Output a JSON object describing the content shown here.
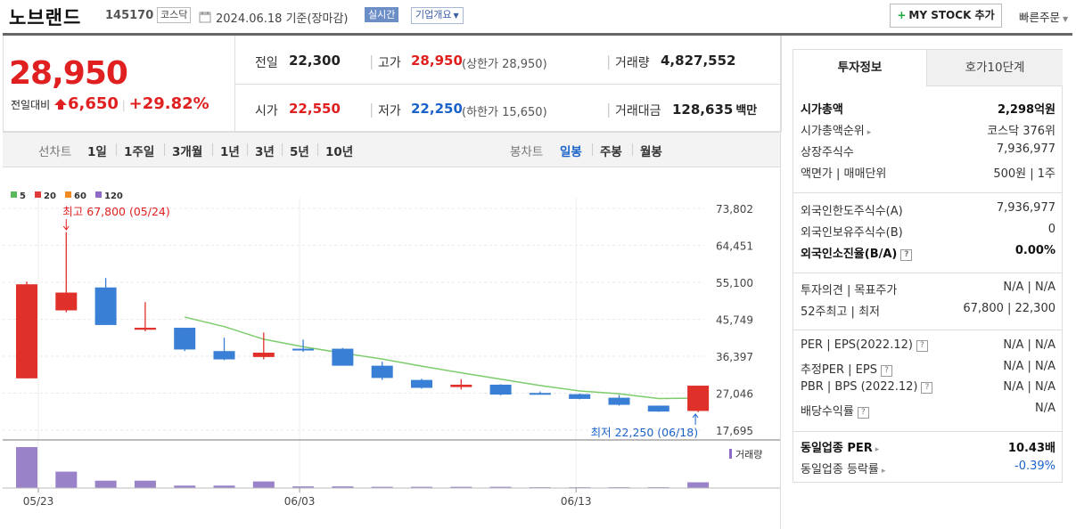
{
  "header": {
    "name": "노브랜드",
    "code": "145170",
    "market": "코스닥",
    "date": "2024.06.18 기준(장마감)",
    "realtime": "실시간",
    "company": "기업개요",
    "mystock": "MY STOCK 추가",
    "quick_order": "빠른주문"
  },
  "price": {
    "current": "28,950",
    "diff_label": "전일대비",
    "diff": "6,650",
    "rate": "+29.82%",
    "prev_label": "전일",
    "prev": "22,300",
    "high_label": "고가",
    "high": "28,950",
    "upper_limit": "(상한가 28,950)",
    "volume_label": "거래량",
    "volume": "4,827,552",
    "open_label": "시가",
    "open": "22,550",
    "low_label": "저가",
    "low": "22,250",
    "lower_limit": "(하한가 15,650)",
    "amount_label": "거래대금",
    "amount": "128,635",
    "amount_unit": "백만"
  },
  "chart_tabs": {
    "line_label": "선차트",
    "line_items": [
      "1일",
      "1주일",
      "3개월",
      "1년",
      "3년",
      "5년",
      "10년"
    ],
    "candle_label": "봉차트",
    "candle_items": [
      "일봉",
      "주봉",
      "월봉"
    ],
    "active": "일봉"
  },
  "chart_data": {
    "type": "candlestick",
    "legend": [
      {
        "name": "5",
        "color": "#5cb85c"
      },
      {
        "name": "20",
        "color": "#e03a3a"
      },
      {
        "name": "60",
        "color": "#f08a24"
      },
      {
        "name": "120",
        "color": "#8e6ac8"
      }
    ],
    "y_ticks": [
      "73,802",
      "64,451",
      "55,100",
      "45,749",
      "36,397",
      "27,046",
      "17,695"
    ],
    "ylim": [
      17695,
      73802
    ],
    "x_ticks": [
      {
        "label": "05/23",
        "index": 0
      },
      {
        "label": "06/03",
        "index": 7
      },
      {
        "label": "06/13",
        "index": 14
      }
    ],
    "max_annotation": "최고 67,800 (05/24)",
    "min_annotation": "최저 22,250 (06/18)",
    "volume_label": "거래량",
    "candles": [
      {
        "o": 30800,
        "h": 55300,
        "l": 30800,
        "c": 54600,
        "up": true
      },
      {
        "o": 48000,
        "h": 67800,
        "l": 47500,
        "c": 52500,
        "up": true
      },
      {
        "o": 53800,
        "h": 56200,
        "l": 44300,
        "c": 44300,
        "up": false
      },
      {
        "o": 43100,
        "h": 50100,
        "l": 42700,
        "c": 43600,
        "up": true
      },
      {
        "o": 43600,
        "h": 43600,
        "l": 37700,
        "c": 38100,
        "up": false
      },
      {
        "o": 37700,
        "h": 41100,
        "l": 35400,
        "c": 35600,
        "up": false
      },
      {
        "o": 36200,
        "h": 42400,
        "l": 35600,
        "c": 37300,
        "up": true
      },
      {
        "o": 38300,
        "h": 40600,
        "l": 37500,
        "c": 37900,
        "up": false
      },
      {
        "o": 38300,
        "h": 38500,
        "l": 34000,
        "c": 34000,
        "up": false
      },
      {
        "o": 34000,
        "h": 35000,
        "l": 30400,
        "c": 30900,
        "up": false
      },
      {
        "o": 30400,
        "h": 30700,
        "l": 28200,
        "c": 28400,
        "up": false
      },
      {
        "o": 28600,
        "h": 30600,
        "l": 28000,
        "c": 29200,
        "up": true
      },
      {
        "o": 29200,
        "h": 29300,
        "l": 26500,
        "c": 26700,
        "up": false
      },
      {
        "o": 27100,
        "h": 27500,
        "l": 26700,
        "c": 27100,
        "up": false
      },
      {
        "o": 26800,
        "h": 27000,
        "l": 25500,
        "c": 25600,
        "up": false
      },
      {
        "o": 25900,
        "h": 26600,
        "l": 23900,
        "c": 24100,
        "up": false
      },
      {
        "o": 23900,
        "h": 23900,
        "l": 22300,
        "c": 22400,
        "up": false
      },
      {
        "o": 22550,
        "h": 28950,
        "l": 22250,
        "c": 28950,
        "up": true
      }
    ],
    "ma5": [
      null,
      null,
      null,
      null,
      46300,
      43900,
      40700,
      38800,
      37200,
      35700,
      33900,
      32200,
      30600,
      29000,
      27600,
      26900,
      25700,
      25800
    ],
    "volumes": [
      100,
      40,
      18,
      18,
      6,
      6,
      16,
      4,
      4,
      3,
      3,
      3,
      3,
      2,
      2,
      2,
      2,
      14
    ]
  },
  "invest": {
    "tabs": [
      "투자정보",
      "호가10단계"
    ],
    "active_tab": "투자정보",
    "rows": [
      {
        "label": "시가총액",
        "value": "2,298억원",
        "bold": true
      },
      {
        "label": "시가총액순위",
        "value": "코스닥 376위"
      },
      {
        "label": "상장주식수",
        "value": "7,936,977"
      },
      {
        "label": "액면가 | 매매단위",
        "value": "500원 | 1주"
      },
      {
        "label": "외국인한도주식수(A)",
        "value": "7,936,977"
      },
      {
        "label": "외국인보유주식수(B)",
        "value": "0"
      },
      {
        "label": "외국인소진율(B/A)",
        "value": "0.00%",
        "bold": true
      },
      {
        "label": "투자의견 | 목표주가",
        "value": "N/A | N/A"
      },
      {
        "label": "52주최고 | 최저",
        "value": "67,800 | 22,300"
      },
      {
        "label": "PER | EPS(2022.12)",
        "value": "N/A | N/A"
      },
      {
        "label": "추정PER | EPS",
        "value": "N/A | N/A"
      },
      {
        "label": "PBR | BPS (2022.12)",
        "value": "N/A | N/A"
      },
      {
        "label": "배당수익률",
        "value": "N/A"
      },
      {
        "label": "동일업종 PER",
        "value": "10.43배",
        "bold": true
      },
      {
        "label": "동일업종 등락률",
        "value": "-0.39%"
      }
    ]
  }
}
